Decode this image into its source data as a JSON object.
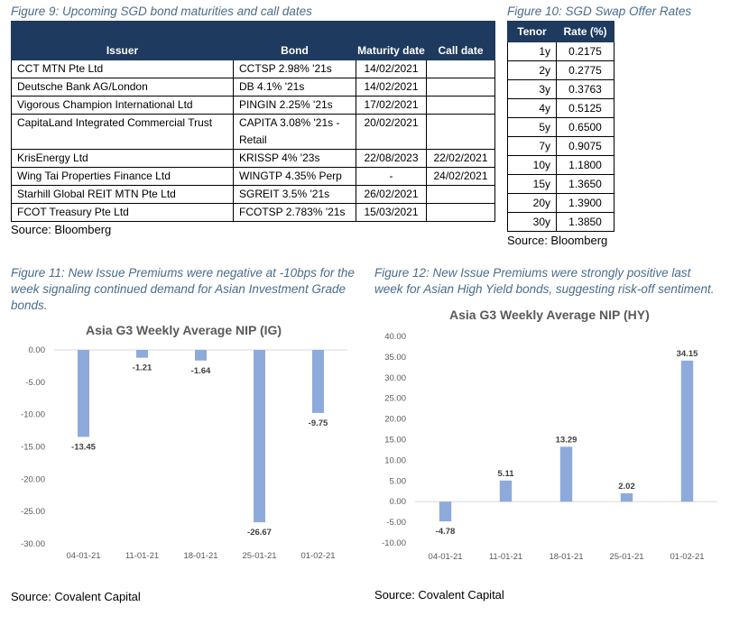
{
  "fig9": {
    "caption": "Figure 9: Upcoming SGD bond maturities and call dates",
    "headers": {
      "issuer": "Issuer",
      "bond": "Bond",
      "maturity": "Maturity date",
      "call": "Call date"
    },
    "rows": [
      {
        "issuer": "CCT MTN Pte Ltd",
        "bond": "CCTSP 2.98% '21s",
        "maturity": "14/02/2021",
        "call": ""
      },
      {
        "issuer": "Deutsche Bank AG/London",
        "bond": "DB 4.1% '21s",
        "maturity": "14/02/2021",
        "call": ""
      },
      {
        "issuer": "Vigorous Champion International Ltd",
        "bond": "PINGIN 2.25% '21s",
        "maturity": "17/02/2021",
        "call": ""
      },
      {
        "issuer": "CapitaLand Integrated Commercial Trust",
        "bond": "CAPITA 3.08% '21s - Retail",
        "maturity": "20/02/2021",
        "call": ""
      },
      {
        "issuer": "KrisEnergy Ltd",
        "bond": "KRISSP 4% '23s",
        "maturity": "22/08/2023",
        "call": "22/02/2021"
      },
      {
        "issuer": "Wing Tai Properties Finance Ltd",
        "bond": "WINGTP 4.35% Perp",
        "maturity": "-",
        "call": "24/02/2021"
      },
      {
        "issuer": "Starhill Global REIT MTN Pte Ltd",
        "bond": "SGREIT 3.5% '21s",
        "maturity": "26/02/2021",
        "call": ""
      },
      {
        "issuer": "FCOT Treasury Pte Ltd",
        "bond": "FCOTSP 2.783% '21s",
        "maturity": "15/03/2021",
        "call": ""
      }
    ],
    "source": "Source: Bloomberg"
  },
  "fig10": {
    "caption": "Figure 10: SGD Swap Offer Rates",
    "headers": {
      "tenor": "Tenor",
      "rate": "Rate (%)"
    },
    "rows": [
      {
        "tenor": "1y",
        "rate": "0.2175"
      },
      {
        "tenor": "2y",
        "rate": "0.2775"
      },
      {
        "tenor": "3y",
        "rate": "0.3763"
      },
      {
        "tenor": "4y",
        "rate": "0.5125"
      },
      {
        "tenor": "5y",
        "rate": "0.6500"
      },
      {
        "tenor": "7y",
        "rate": "0.9075"
      },
      {
        "tenor": "10y",
        "rate": "1.1800"
      },
      {
        "tenor": "15y",
        "rate": "1.3650"
      },
      {
        "tenor": "20y",
        "rate": "1.3900"
      },
      {
        "tenor": "30y",
        "rate": "1.3850"
      }
    ],
    "source": "Source: Bloomberg"
  },
  "fig11": {
    "caption": "Figure 11: New Issue Premiums were negative at -10bps for the week signaling continued demand for Asian Investment Grade bonds.",
    "source": "Source: Covalent Capital"
  },
  "fig12": {
    "caption": "Figure 12: New Issue Premiums were strongly positive last week for Asian High Yield bonds, suggesting risk-off sentiment.",
    "source": "Source: Covalent Capital"
  },
  "chart_data": [
    {
      "type": "bar",
      "title": "Asia G3 Weekly Average NIP (IG)",
      "categories": [
        "04-01-21",
        "11-01-21",
        "18-01-21",
        "25-01-21",
        "01-02-21"
      ],
      "values": [
        -13.45,
        -1.21,
        -1.64,
        -26.67,
        -9.75
      ],
      "labels": [
        "-13.45",
        "-1.21",
        "-1.64",
        "-26.67",
        "-9.75"
      ],
      "ylim": [
        -30,
        0
      ],
      "yticks": [
        "0.00",
        "-5.00",
        "-10.00",
        "-15.00",
        "-20.00",
        "-25.00",
        "-30.00"
      ],
      "xlabel": "",
      "ylabel": "",
      "grid": false,
      "bar_color": "#8eaadb"
    },
    {
      "type": "bar",
      "title": "Asia G3 Weekly Average NIP (HY)",
      "categories": [
        "04-01-21",
        "11-01-21",
        "18-01-21",
        "25-01-21",
        "01-02-21"
      ],
      "values": [
        -4.78,
        5.11,
        13.29,
        2.02,
        34.15
      ],
      "labels": [
        "-4.78",
        "5.11",
        "13.29",
        "2.02",
        "34.15"
      ],
      "ylim": [
        -10,
        40
      ],
      "yticks": [
        "40.00",
        "35.00",
        "30.00",
        "25.00",
        "20.00",
        "15.00",
        "10.00",
        "5.00",
        "0.00",
        "-5.00",
        "-10.00"
      ],
      "xlabel": "",
      "ylabel": "",
      "grid": false,
      "bar_color": "#8eaadb"
    }
  ]
}
